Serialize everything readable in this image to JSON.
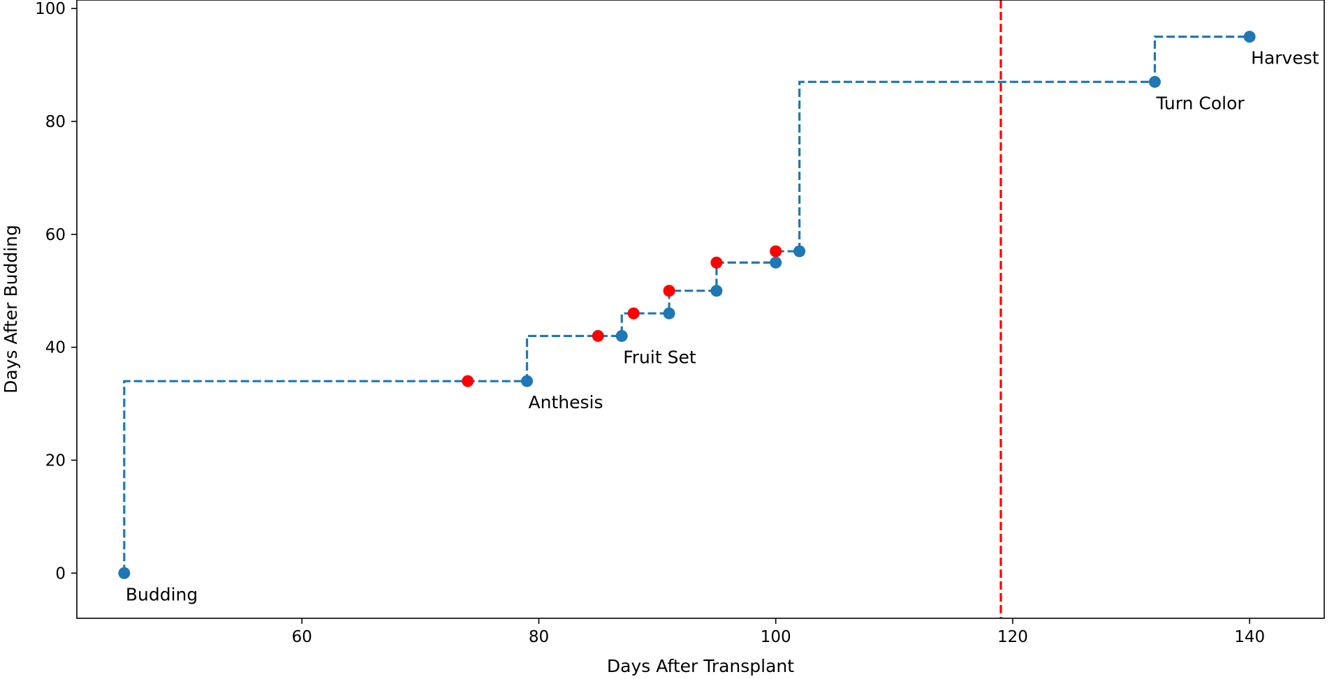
{
  "chart_data": {
    "type": "scatter",
    "title": "",
    "xlabel": "Days After Transplant",
    "ylabel": "Days After Budding",
    "xlim": [
      41,
      146.3
    ],
    "ylim": [
      -8,
      101.5
    ],
    "x_ticks": [
      60,
      80,
      100,
      120,
      140
    ],
    "y_ticks": [
      0,
      20,
      40,
      60,
      80,
      100
    ],
    "grid": false,
    "legend": "none",
    "colors": {
      "stage_points": "#1f77b4",
      "event_points": "#ff0000",
      "step_line": "#1f77b4",
      "reference_line": "#ff0000"
    },
    "step_series": {
      "style": "dashed post-step",
      "x": [
        45,
        79,
        87,
        91,
        95,
        100,
        102,
        132,
        140
      ],
      "y": [
        0,
        34,
        42,
        46,
        50,
        55,
        57,
        87,
        95
      ]
    },
    "stage_points": [
      {
        "x": 45,
        "y": 0,
        "label": "Budding"
      },
      {
        "x": 79,
        "y": 34,
        "label": "Anthesis"
      },
      {
        "x": 87,
        "y": 42,
        "label": "Fruit Set"
      },
      {
        "x": 91,
        "y": 46,
        "label": ""
      },
      {
        "x": 95,
        "y": 50,
        "label": ""
      },
      {
        "x": 100,
        "y": 55,
        "label": ""
      },
      {
        "x": 102,
        "y": 57,
        "label": ""
      },
      {
        "x": 132,
        "y": 87,
        "label": "Turn Color"
      },
      {
        "x": 140,
        "y": 95,
        "label": "Harvest"
      }
    ],
    "event_points": [
      {
        "x": 74,
        "y": 34
      },
      {
        "x": 85,
        "y": 42
      },
      {
        "x": 88,
        "y": 46
      },
      {
        "x": 91,
        "y": 50
      },
      {
        "x": 95,
        "y": 55
      },
      {
        "x": 100,
        "y": 57
      }
    ],
    "vertical_reference_line": {
      "x": 119,
      "style": "dashed"
    }
  }
}
